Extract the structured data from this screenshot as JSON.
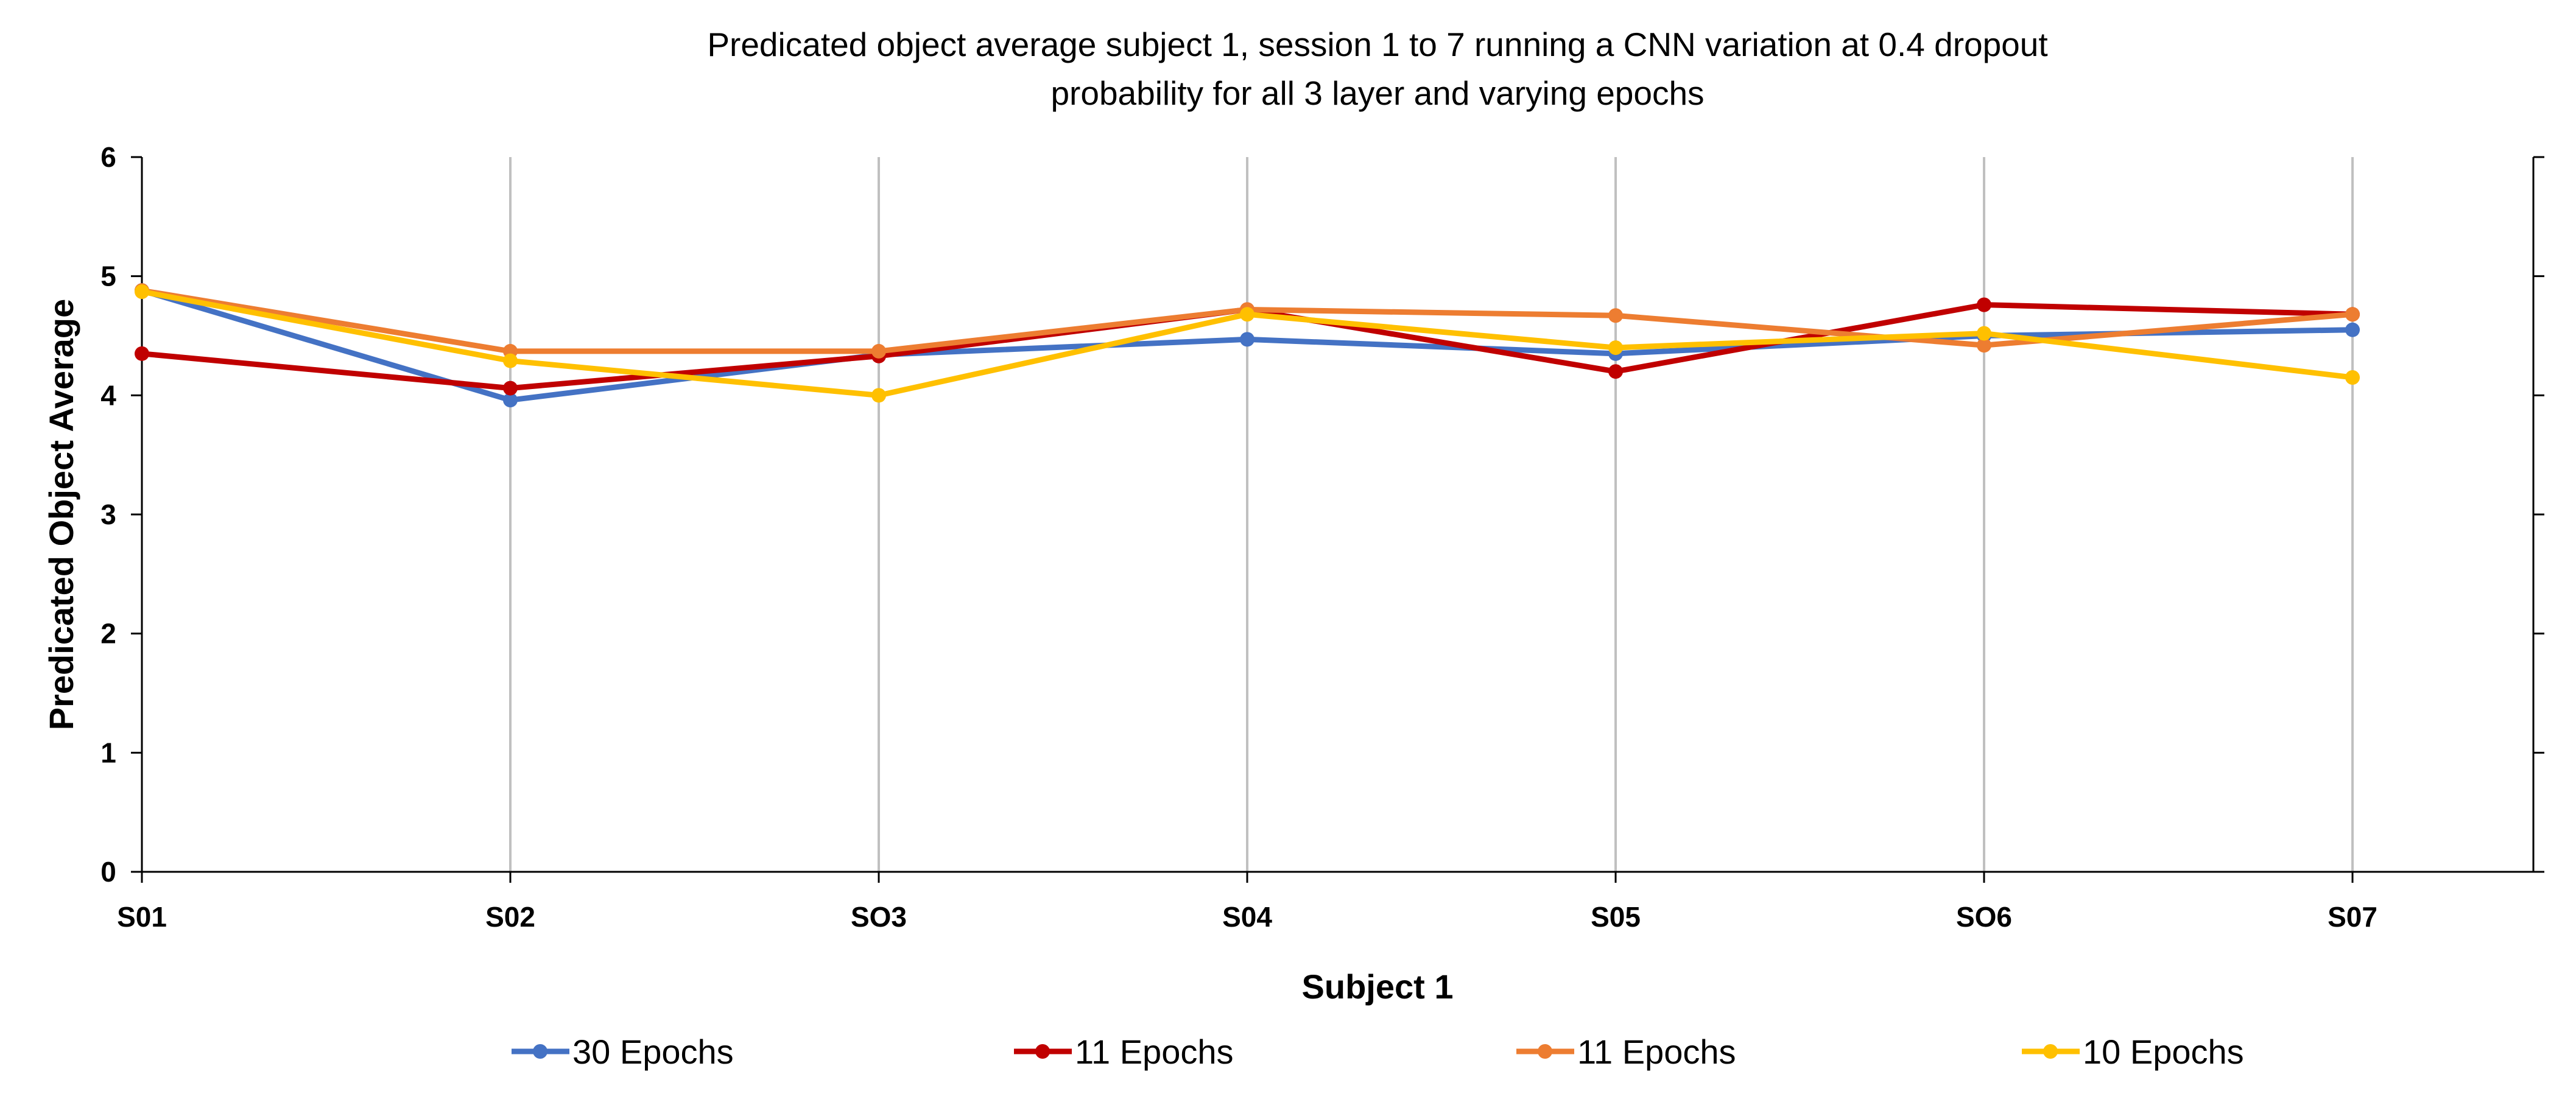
{
  "chart_data": {
    "type": "line",
    "title": [
      "Predicated object average subject 1, session 1 to 7 running a CNN variation at 0.4 dropout",
      "probability for all 3 layer and varying epochs"
    ],
    "xlabel": "Subject 1",
    "ylabel": "Predicated Object Average",
    "categories": [
      "S01",
      "S02",
      "SO3",
      "S04",
      "S05",
      "SO6",
      "S07"
    ],
    "ylim": [
      0,
      6
    ],
    "yticks": [
      "0",
      "1",
      "2",
      "3",
      "4",
      "5",
      "6"
    ],
    "grid": "vertical",
    "legend_position": "bottom",
    "series": [
      {
        "name": "30 Epochs",
        "color": "#4472C4",
        "values": [
          4.88,
          3.96,
          4.34,
          4.47,
          4.35,
          4.5,
          4.55
        ]
      },
      {
        "name": "11 Epochs",
        "color": "#C00000",
        "values": [
          4.35,
          4.06,
          4.33,
          4.72,
          4.2,
          4.76,
          4.68
        ]
      },
      {
        "name": "11 Epochs",
        "color": "#ED7D31",
        "values": [
          4.88,
          4.37,
          4.37,
          4.72,
          4.67,
          4.42,
          4.68
        ]
      },
      {
        "name": "10 Epochs",
        "color": "#FFC000",
        "values": [
          4.87,
          4.29,
          4.0,
          4.68,
          4.4,
          4.52,
          4.15
        ]
      }
    ]
  }
}
